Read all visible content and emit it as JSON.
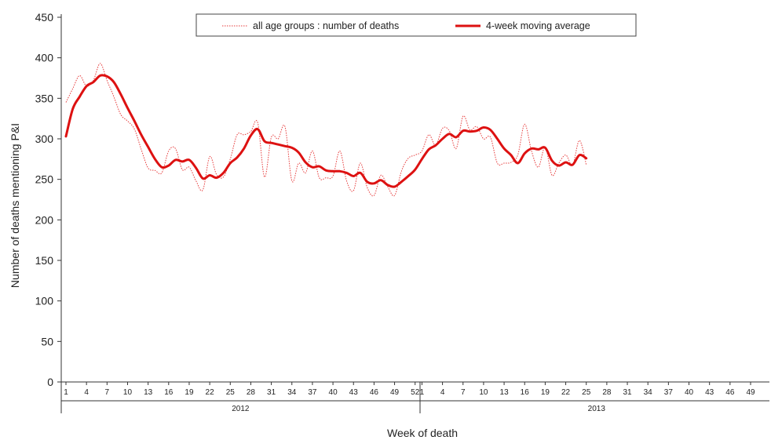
{
  "chart_data": {
    "type": "line",
    "xlabel": "Week of death",
    "ylabel": "Number of deaths mentioning P&I",
    "ylim": [
      0,
      450
    ],
    "yticks": [
      "0",
      "50",
      "100",
      "150",
      "200",
      "250",
      "300",
      "350",
      "400",
      "450"
    ],
    "grid": false,
    "legend_position": "top",
    "years": [
      {
        "label": "2012",
        "weeks": 52,
        "tick_labels": [
          "1",
          "4",
          "7",
          "10",
          "13",
          "16",
          "19",
          "22",
          "25",
          "28",
          "31",
          "34",
          "37",
          "40",
          "43",
          "46",
          "49",
          "52"
        ]
      },
      {
        "label": "2013",
        "weeks": 52,
        "tick_labels": [
          "1",
          "4",
          "7",
          "10",
          "13",
          "16",
          "19",
          "22",
          "25",
          "28",
          "31",
          "34",
          "37",
          "40",
          "43",
          "46",
          "49"
        ]
      }
    ],
    "series": [
      {
        "name": "all age groups : number of deaths",
        "color": "#e63b3b",
        "style": "dotted",
        "x": [
          1,
          2,
          3,
          4,
          5,
          6,
          7,
          8,
          9,
          10,
          11,
          12,
          13,
          14,
          15,
          16,
          17,
          18,
          19,
          20,
          21,
          22,
          23,
          24,
          25,
          26,
          27,
          28,
          29,
          30,
          31,
          32,
          33,
          34,
          35,
          36,
          37,
          38,
          39,
          40,
          41,
          42,
          43,
          44,
          45,
          46,
          47,
          48,
          49,
          50,
          51,
          52,
          53,
          54,
          55,
          56,
          57,
          58,
          59,
          60,
          61,
          62,
          63,
          64,
          65,
          66,
          67,
          68,
          69,
          70,
          71,
          72,
          73,
          74,
          75,
          76,
          77
        ],
        "values": [
          345,
          362,
          378,
          365,
          372,
          393,
          372,
          352,
          330,
          322,
          312,
          287,
          264,
          261,
          258,
          285,
          288,
          262,
          265,
          248,
          237,
          278,
          256,
          253,
          275,
          305,
          305,
          309,
          320,
          253,
          302,
          300,
          315,
          248,
          270,
          258,
          285,
          252,
          252,
          254,
          285,
          248,
          236,
          270,
          240,
          230,
          255,
          241,
          230,
          260,
          276,
          280,
          285,
          305,
          292,
          313,
          310,
          288,
          328,
          311,
          315,
          300,
          302,
          270,
          270,
          271,
          280,
          318,
          285,
          265,
          290,
          255,
          270,
          280,
          268,
          298,
          268
        ]
      },
      {
        "name": "4-week moving average",
        "color": "#dd1111",
        "style": "solid",
        "x": [
          1,
          2,
          3,
          4,
          5,
          6,
          7,
          8,
          9,
          10,
          11,
          12,
          13,
          14,
          15,
          16,
          17,
          18,
          19,
          20,
          21,
          22,
          23,
          24,
          25,
          26,
          27,
          28,
          29,
          30,
          31,
          32,
          33,
          34,
          35,
          36,
          37,
          38,
          39,
          40,
          41,
          42,
          43,
          44,
          45,
          46,
          47,
          48,
          49,
          50,
          51,
          52,
          53,
          54,
          55,
          56,
          57,
          58,
          59,
          60,
          61,
          62,
          63,
          64,
          65,
          66,
          67,
          68,
          69,
          70,
          71,
          72,
          73,
          74,
          75,
          76,
          77
        ],
        "values": [
          303,
          337,
          352,
          365,
          370,
          378,
          377,
          370,
          355,
          338,
          322,
          305,
          290,
          275,
          265,
          267,
          274,
          272,
          274,
          264,
          251,
          255,
          252,
          258,
          270,
          277,
          288,
          304,
          312,
          297,
          295,
          293,
          291,
          289,
          283,
          271,
          265,
          266,
          261,
          260,
          260,
          258,
          254,
          258,
          247,
          245,
          249,
          243,
          241,
          247,
          254,
          262,
          275,
          287,
          292,
          300,
          306,
          302,
          310,
          309,
          310,
          314,
          311,
          300,
          288,
          280,
          270,
          282,
          288,
          287,
          289,
          273,
          267,
          271,
          268,
          280,
          276
        ]
      }
    ]
  }
}
